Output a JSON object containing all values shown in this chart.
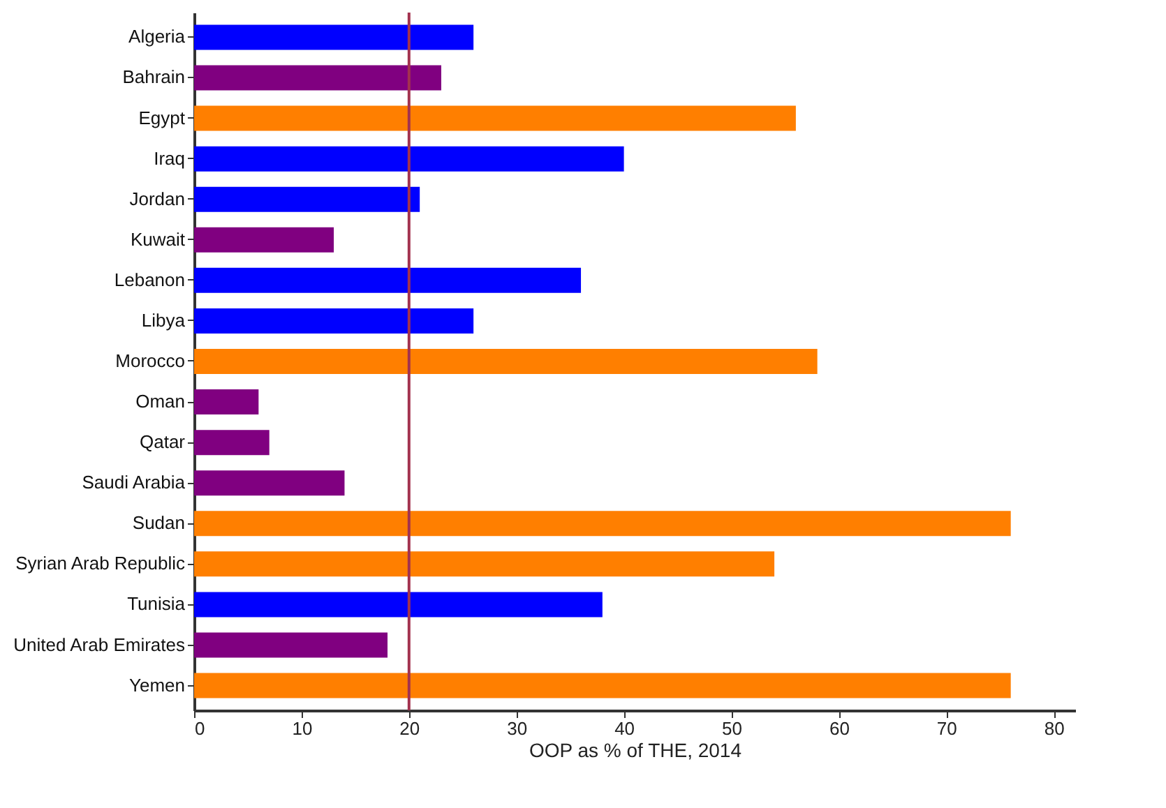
{
  "chart_data": {
    "type": "bar",
    "orientation": "horizontal",
    "xlabel": "OOP as % of THE, 2014",
    "categories": [
      "Algeria",
      "Bahrain",
      "Egypt",
      "Iraq",
      "Jordan",
      "Kuwait",
      "Lebanon",
      "Libya",
      "Morocco",
      "Oman",
      "Qatar",
      "Saudi Arabia",
      "Sudan",
      "Syrian Arab Republic",
      "Tunisia",
      "United Arab Emirates",
      "Yemen"
    ],
    "values": [
      26,
      23,
      56,
      40,
      21,
      13,
      36,
      26,
      58,
      6,
      7,
      14,
      76,
      54,
      38,
      18,
      76
    ],
    "colors": [
      "#0000ff",
      "#800080",
      "#ff7f00",
      "#0000ff",
      "#0000ff",
      "#800080",
      "#0000ff",
      "#0000ff",
      "#ff7f00",
      "#800080",
      "#800080",
      "#800080",
      "#ff7f00",
      "#ff7f00",
      "#0000ff",
      "#800080",
      "#ff7f00"
    ],
    "xlim": [
      0,
      82
    ],
    "xticks": [
      0,
      10,
      20,
      30,
      40,
      50,
      60,
      70,
      80
    ],
    "ref_lines": [
      {
        "axis": "x",
        "value": 20,
        "color": "#a3324f"
      }
    ],
    "grid": false
  }
}
